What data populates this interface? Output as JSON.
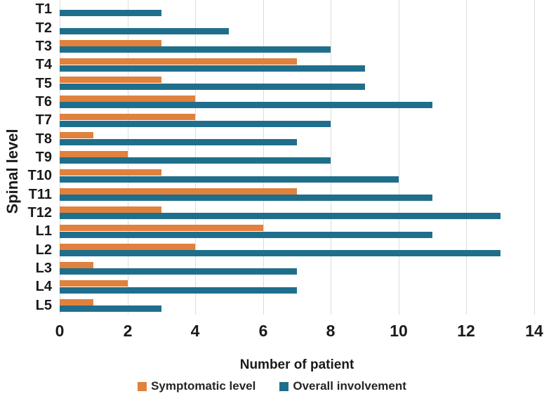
{
  "figure": {
    "background": "#ffffff",
    "text_color": "#1a1a1a",
    "gridline_color": "#dcdcdc"
  },
  "chart_data": {
    "type": "bar",
    "orientation": "horizontal",
    "title": "",
    "xlabel": "Number of patient",
    "ylabel": "Spinal level",
    "xlim": [
      0,
      14
    ],
    "xticks": [
      0,
      2,
      4,
      6,
      8,
      10,
      12,
      14
    ],
    "grid": "vertical",
    "legend_position": "bottom",
    "categories": [
      "T1",
      "T2",
      "T3",
      "T4",
      "T5",
      "T6",
      "T7",
      "T8",
      "T9",
      "T10",
      "T11",
      "T12",
      "L1",
      "L2",
      "L3",
      "L4",
      "L5"
    ],
    "series": [
      {
        "name": "Symptomatic level",
        "color": "#E0813D",
        "values": [
          0,
          0,
          3,
          7,
          3,
          4,
          4,
          1,
          2,
          3,
          7,
          3,
          6,
          4,
          1,
          2,
          1
        ]
      },
      {
        "name": "Overall involvement",
        "color": "#1F6F8C",
        "values": [
          3,
          5,
          8,
          9,
          9,
          11,
          8,
          7,
          8,
          10,
          11,
          13,
          11,
          13,
          7,
          7,
          3
        ]
      }
    ]
  }
}
